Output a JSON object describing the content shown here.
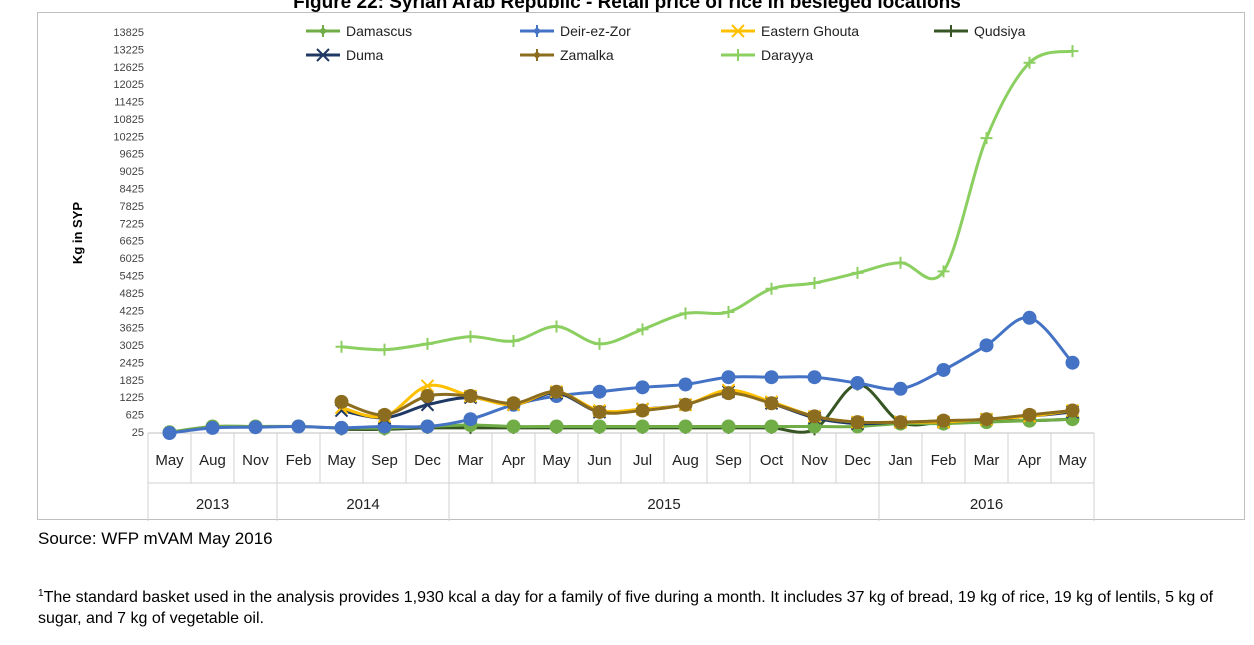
{
  "figure": {
    "title": "Figure 22: Syrian Arab Republic - Retail price of rice in besieged locations"
  },
  "chart_data": {
    "type": "line",
    "title": "",
    "xlabel": "",
    "ylabel": "Kg in SYP",
    "ylim": [
      25,
      13825
    ],
    "yticks": [
      25,
      625,
      1225,
      1825,
      2425,
      3025,
      3625,
      4225,
      4825,
      5425,
      6025,
      6625,
      7225,
      7825,
      8425,
      9025,
      9625,
      10225,
      10825,
      11425,
      12025,
      12625,
      13225,
      13825
    ],
    "categories": [
      "May",
      "Aug",
      "Nov",
      "Feb",
      "May",
      "Sep",
      "Dec",
      "Mar",
      "Apr",
      "May",
      "Jun",
      "Jul",
      "Aug",
      "Sep",
      "Oct",
      "Nov",
      "Dec",
      "Jan",
      "Feb",
      "Mar",
      "Apr",
      "May"
    ],
    "years": [
      {
        "label": "2013",
        "start": 0,
        "end": 2
      },
      {
        "label": "2014",
        "start": 3,
        "end": 6
      },
      {
        "label": "2015",
        "start": 7,
        "end": 16
      },
      {
        "label": "2016",
        "start": 17,
        "end": 21
      }
    ],
    "legend_position": "top",
    "grid": false,
    "series": [
      {
        "name": "Damascus",
        "color": "#70ad47",
        "marker": "dot",
        "values": [
          50,
          250,
          250,
          250,
          200,
          200,
          250,
          300,
          250,
          250,
          250,
          250,
          250,
          250,
          250,
          250,
          250,
          350,
          350,
          400,
          450,
          500
        ]
      },
      {
        "name": "Deir-ez-Zor",
        "color": "#4472c4",
        "marker": "dot",
        "values": [
          25,
          200,
          225,
          250,
          200,
          250,
          250,
          500,
          1000,
          1300,
          1450,
          1600,
          1700,
          1950,
          1950,
          1950,
          1750,
          1550,
          2200,
          3050,
          4000,
          2450
        ]
      },
      {
        "name": "Eastern Ghouta",
        "color": "#ffc000",
        "marker": "x",
        "values": [
          null,
          null,
          null,
          null,
          900,
          600,
          1650,
          1300,
          1000,
          1450,
          800,
          850,
          1000,
          1500,
          1100,
          600,
          400,
          400,
          400,
          500,
          600,
          800
        ]
      },
      {
        "name": "Qudsiya",
        "color": "#375623",
        "marker": "plus",
        "values": [
          null,
          null,
          null,
          null,
          150,
          150,
          200,
          200,
          200,
          200,
          200,
          200,
          200,
          200,
          200,
          150,
          1700,
          400,
          400,
          450,
          450,
          500
        ]
      },
      {
        "name": "Duma",
        "color": "#203864",
        "marker": "x",
        "values": [
          null,
          null,
          null,
          null,
          800,
          550,
          1000,
          1250,
          1000,
          1400,
          750,
          850,
          1000,
          1450,
          1050,
          550,
          350,
          400,
          400,
          500,
          600,
          750
        ]
      },
      {
        "name": "Zamalka",
        "color": "#8c6d1f",
        "marker": "dot",
        "values": [
          null,
          null,
          null,
          null,
          1100,
          650,
          1300,
          1300,
          1050,
          1450,
          750,
          800,
          1000,
          1400,
          1050,
          600,
          400,
          400,
          450,
          500,
          650,
          800
        ]
      },
      {
        "name": "Darayya",
        "color": "#8ccf61",
        "marker": "plus",
        "values": [
          null,
          null,
          null,
          null,
          3000,
          2900,
          3100,
          3350,
          3200,
          3700,
          3100,
          3600,
          4150,
          4200,
          5000,
          5200,
          5550,
          5900,
          5600,
          10200,
          12800,
          13200
        ]
      }
    ]
  },
  "source": "Source: WFP mVAM May 2016",
  "footnote": {
    "marker": "1",
    "text": "The standard basket used in the analysis provides 1,930 kcal a day for a family of five during a month. It includes 37 kg of bread, 19 kg of rice, 19 kg of lentils, 5 kg of sugar, and 7 kg of vegetable oil."
  }
}
